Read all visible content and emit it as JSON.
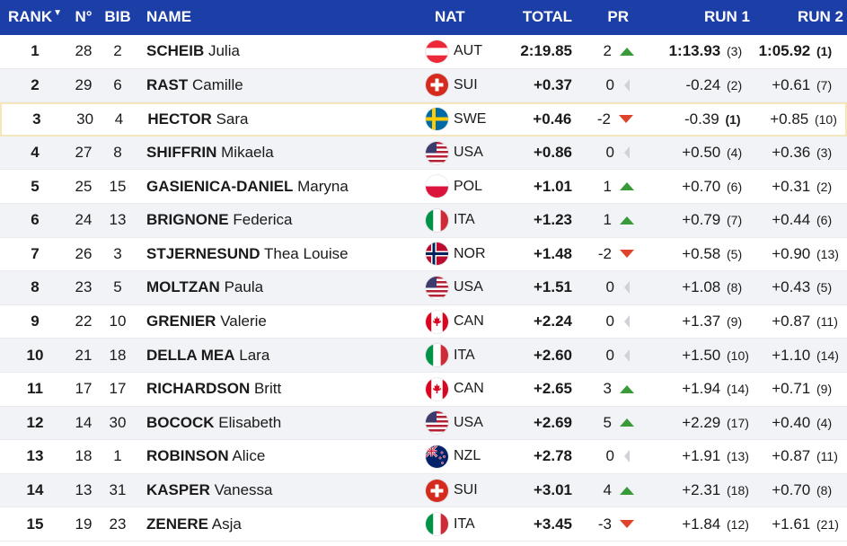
{
  "header": {
    "rank": "RANK",
    "no": "N°",
    "bib": "BIB",
    "name": "NAME",
    "nat": "NAT",
    "total": "TOTAL",
    "pr": "PR",
    "run1": "RUN 1",
    "run2": "RUN 2",
    "sort_icon": "caret-down-icon"
  },
  "colors": {
    "header_bg": "#1c3fa7",
    "up": "#3a9a3a",
    "down": "#e0432b",
    "flat": "#cfd2d8",
    "highlight_border": "#f4e6bd",
    "alt_row": "#f2f3f7"
  },
  "rows": [
    {
      "rank": "1",
      "no": "28",
      "bib": "2",
      "last": "SCHEIB",
      "first": "Julia",
      "nat": "AUT",
      "total": "2:19.85",
      "pr": "2",
      "trend": "up",
      "run1": "1:13.93",
      "run1_pos": "(3)",
      "run2": "1:05.92",
      "run2_pos": "(1)"
    },
    {
      "rank": "2",
      "no": "29",
      "bib": "6",
      "last": "RAST",
      "first": "Camille",
      "nat": "SUI",
      "total": "+0.37",
      "pr": "0",
      "trend": "flat",
      "run1": "-0.24",
      "run1_pos": "(2)",
      "run2": "+0.61",
      "run2_pos": "(7)"
    },
    {
      "rank": "3",
      "no": "30",
      "bib": "4",
      "last": "HECTOR",
      "first": "Sara",
      "nat": "SWE",
      "total": "+0.46",
      "pr": "-2",
      "trend": "down",
      "run1": "-0.39",
      "run1_pos": "(1)",
      "run2": "+0.85",
      "run2_pos": "(10)"
    },
    {
      "rank": "4",
      "no": "27",
      "bib": "8",
      "last": "SHIFFRIN",
      "first": "Mikaela",
      "nat": "USA",
      "total": "+0.86",
      "pr": "0",
      "trend": "flat",
      "run1": "+0.50",
      "run1_pos": "(4)",
      "run2": "+0.36",
      "run2_pos": "(3)"
    },
    {
      "rank": "5",
      "no": "25",
      "bib": "15",
      "last": "GASIENICA-DANIEL",
      "first": "Maryna",
      "nat": "POL",
      "total": "+1.01",
      "pr": "1",
      "trend": "up",
      "run1": "+0.70",
      "run1_pos": "(6)",
      "run2": "+0.31",
      "run2_pos": "(2)"
    },
    {
      "rank": "6",
      "no": "24",
      "bib": "13",
      "last": "BRIGNONE",
      "first": "Federica",
      "nat": "ITA",
      "total": "+1.23",
      "pr": "1",
      "trend": "up",
      "run1": "+0.79",
      "run1_pos": "(7)",
      "run2": "+0.44",
      "run2_pos": "(6)"
    },
    {
      "rank": "7",
      "no": "26",
      "bib": "3",
      "last": "STJERNESUND",
      "first": "Thea Louise",
      "nat": "NOR",
      "total": "+1.48",
      "pr": "-2",
      "trend": "down",
      "run1": "+0.58",
      "run1_pos": "(5)",
      "run2": "+0.90",
      "run2_pos": "(13)"
    },
    {
      "rank": "8",
      "no": "23",
      "bib": "5",
      "last": "MOLTZAN",
      "first": "Paula",
      "nat": "USA",
      "total": "+1.51",
      "pr": "0",
      "trend": "flat",
      "run1": "+1.08",
      "run1_pos": "(8)",
      "run2": "+0.43",
      "run2_pos": "(5)"
    },
    {
      "rank": "9",
      "no": "22",
      "bib": "10",
      "last": "GRENIER",
      "first": "Valerie",
      "nat": "CAN",
      "total": "+2.24",
      "pr": "0",
      "trend": "flat",
      "run1": "+1.37",
      "run1_pos": "(9)",
      "run2": "+0.87",
      "run2_pos": "(11)"
    },
    {
      "rank": "10",
      "no": "21",
      "bib": "18",
      "last": "DELLA MEA",
      "first": "Lara",
      "nat": "ITA",
      "total": "+2.60",
      "pr": "0",
      "trend": "flat",
      "run1": "+1.50",
      "run1_pos": "(10)",
      "run2": "+1.10",
      "run2_pos": "(14)"
    },
    {
      "rank": "11",
      "no": "17",
      "bib": "17",
      "last": "RICHARDSON",
      "first": "Britt",
      "nat": "CAN",
      "total": "+2.65",
      "pr": "3",
      "trend": "up",
      "run1": "+1.94",
      "run1_pos": "(14)",
      "run2": "+0.71",
      "run2_pos": "(9)"
    },
    {
      "rank": "12",
      "no": "14",
      "bib": "30",
      "last": "BOCOCK",
      "first": "Elisabeth",
      "nat": "USA",
      "total": "+2.69",
      "pr": "5",
      "trend": "up",
      "run1": "+2.29",
      "run1_pos": "(17)",
      "run2": "+0.40",
      "run2_pos": "(4)"
    },
    {
      "rank": "13",
      "no": "18",
      "bib": "1",
      "last": "ROBINSON",
      "first": "Alice",
      "nat": "NZL",
      "total": "+2.78",
      "pr": "0",
      "trend": "flat",
      "run1": "+1.91",
      "run1_pos": "(13)",
      "run2": "+0.87",
      "run2_pos": "(11)"
    },
    {
      "rank": "14",
      "no": "13",
      "bib": "31",
      "last": "KASPER",
      "first": "Vanessa",
      "nat": "SUI",
      "total": "+3.01",
      "pr": "4",
      "trend": "up",
      "run1": "+2.31",
      "run1_pos": "(18)",
      "run2": "+0.70",
      "run2_pos": "(8)"
    },
    {
      "rank": "15",
      "no": "19",
      "bib": "23",
      "last": "ZENERE",
      "first": "Asja",
      "nat": "ITA",
      "total": "+3.45",
      "pr": "-3",
      "trend": "down",
      "run1": "+1.84",
      "run1_pos": "(12)",
      "run2": "+1.61",
      "run2_pos": "(21)"
    }
  ]
}
